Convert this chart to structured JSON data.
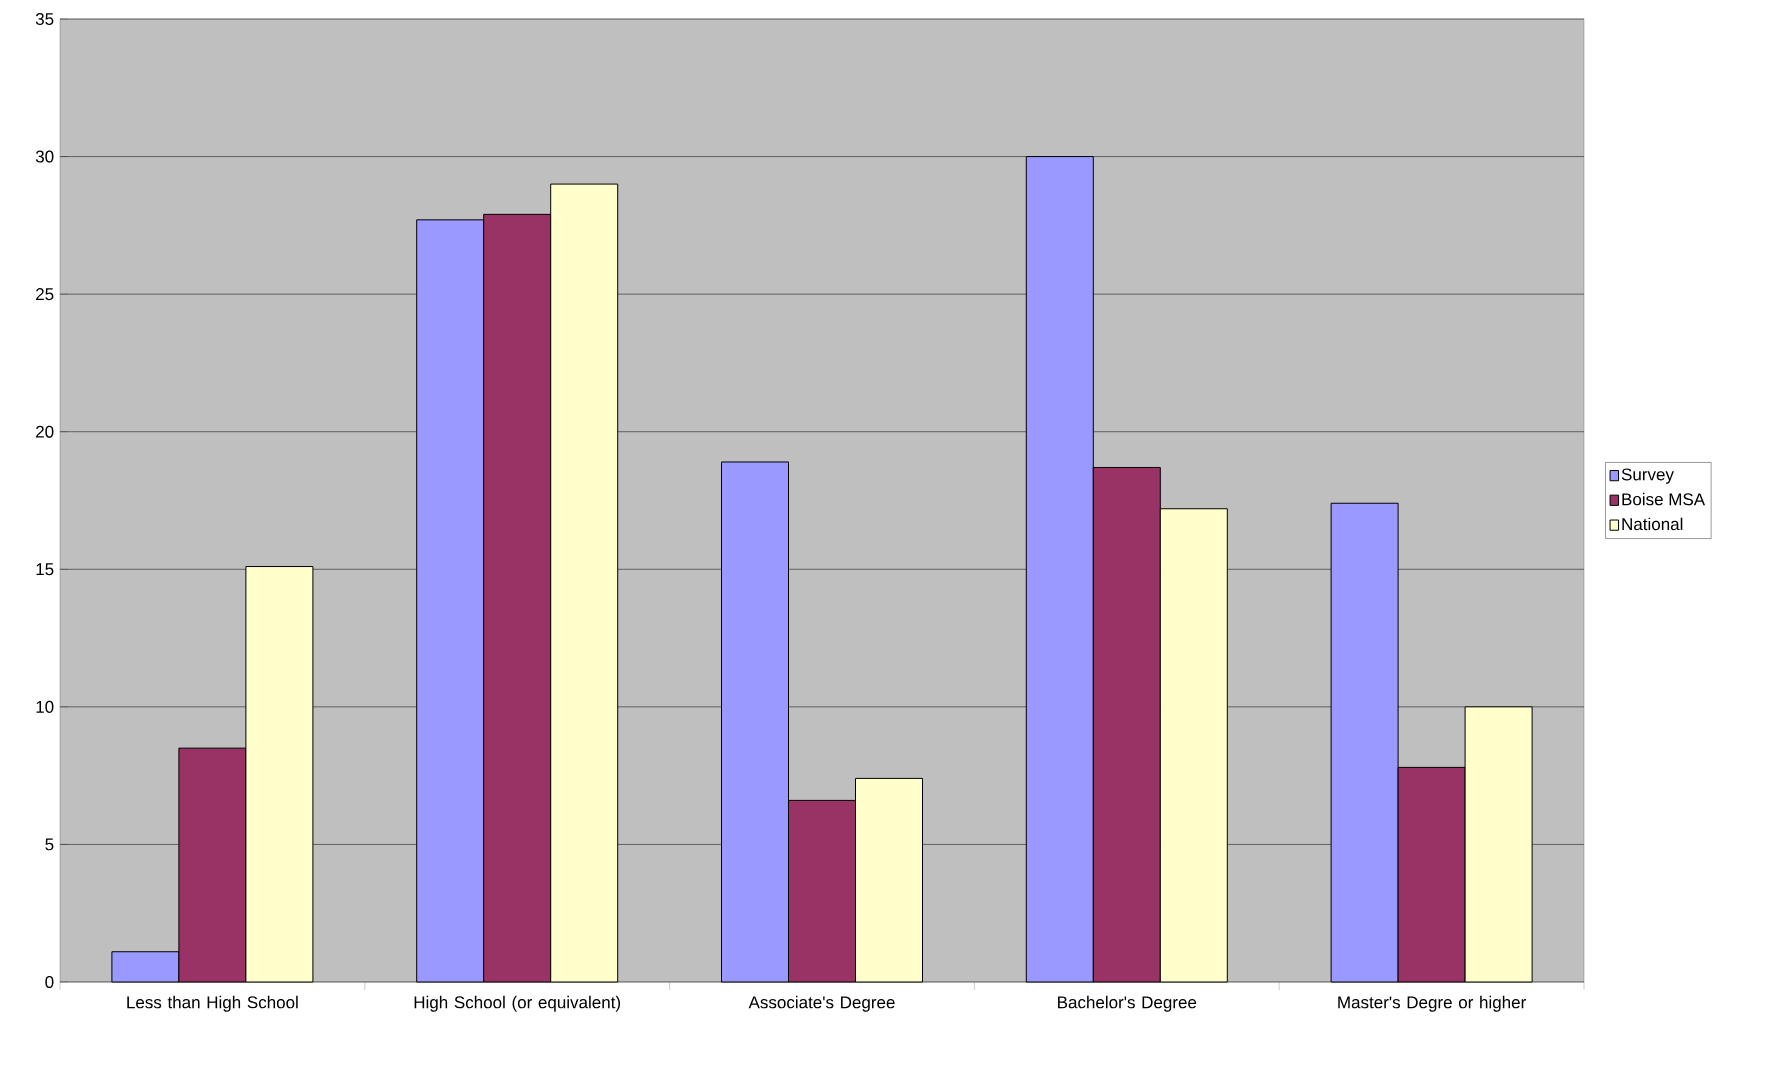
{
  "chart_data": {
    "type": "bar",
    "categories": [
      "Less than High School",
      "High School (or equivalent)",
      "Associate's Degree",
      "Bachelor's Degree",
      "Master's Degre or higher"
    ],
    "series": [
      {
        "name": "Survey",
        "color": "#9999ff",
        "values": [
          1.1,
          27.7,
          18.9,
          30.0,
          17.4
        ]
      },
      {
        "name": "Boise MSA",
        "color": "#993366",
        "values": [
          8.5,
          27.9,
          6.6,
          18.7,
          7.8
        ]
      },
      {
        "name": "National",
        "color": "#ffffcc",
        "values": [
          15.1,
          29.0,
          7.4,
          17.2,
          10.0
        ]
      }
    ],
    "ylim": [
      0,
      35
    ],
    "yticks": [
      0,
      5,
      10,
      15,
      20,
      25,
      30,
      35
    ],
    "grid": "y",
    "legend": "right"
  }
}
